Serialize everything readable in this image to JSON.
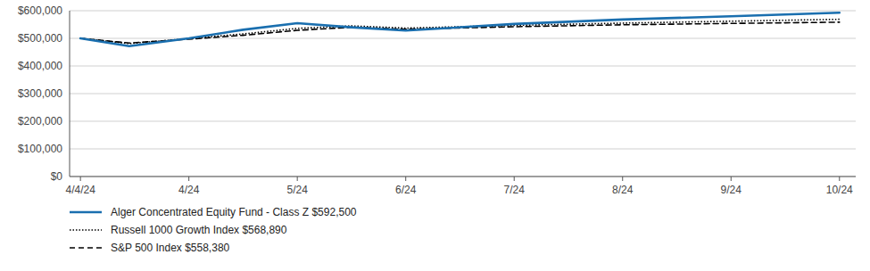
{
  "chart_data": {
    "type": "line",
    "x": [
      0,
      0.45,
      1,
      1.5,
      2,
      2.5,
      3,
      4,
      5,
      6,
      7
    ],
    "xlim": [
      -0.1,
      7.15
    ],
    "xticks": [
      {
        "value": 0,
        "label": "4/4/24"
      },
      {
        "value": 1,
        "label": "4/24"
      },
      {
        "value": 2,
        "label": "5/24"
      },
      {
        "value": 3,
        "label": "6/24"
      },
      {
        "value": 4,
        "label": "7/24"
      },
      {
        "value": 5,
        "label": "8/24"
      },
      {
        "value": 6,
        "label": "9/24"
      },
      {
        "value": 7,
        "label": "10/24"
      }
    ],
    "ylim": [
      0,
      600000
    ],
    "yticks": [
      {
        "value": 0,
        "label": "$0"
      },
      {
        "value": 100000,
        "label": "$100,000"
      },
      {
        "value": 200000,
        "label": "$200,000"
      },
      {
        "value": 300000,
        "label": "$300,000"
      },
      {
        "value": 400000,
        "label": "$400,000"
      },
      {
        "value": 500000,
        "label": "$500,000"
      },
      {
        "value": 600000,
        "label": "$600,000"
      }
    ],
    "grid": true,
    "legend": "bottom",
    "series": [
      {
        "name": "Alger Concentrated Equity Fund - Class Z $592,500",
        "color": "#1a6faf",
        "line_style": "solid",
        "values": [
          500000,
          472000,
          500000,
          531000,
          555000,
          540000,
          528000,
          552000,
          568000,
          580000,
          592500
        ]
      },
      {
        "name": "Russell 1000 Growth Index $568,890",
        "color": "#000000",
        "line_style": "dotted",
        "values": [
          500000,
          481000,
          499000,
          516000,
          536000,
          545000,
          537000,
          547000,
          555000,
          562000,
          568890
        ]
      },
      {
        "name": "S&P 500 Index $558,380",
        "color": "#000000",
        "line_style": "dashed",
        "values": [
          500000,
          483000,
          497000,
          511000,
          529000,
          540000,
          533000,
          542000,
          549000,
          554000,
          558380
        ]
      }
    ]
  }
}
